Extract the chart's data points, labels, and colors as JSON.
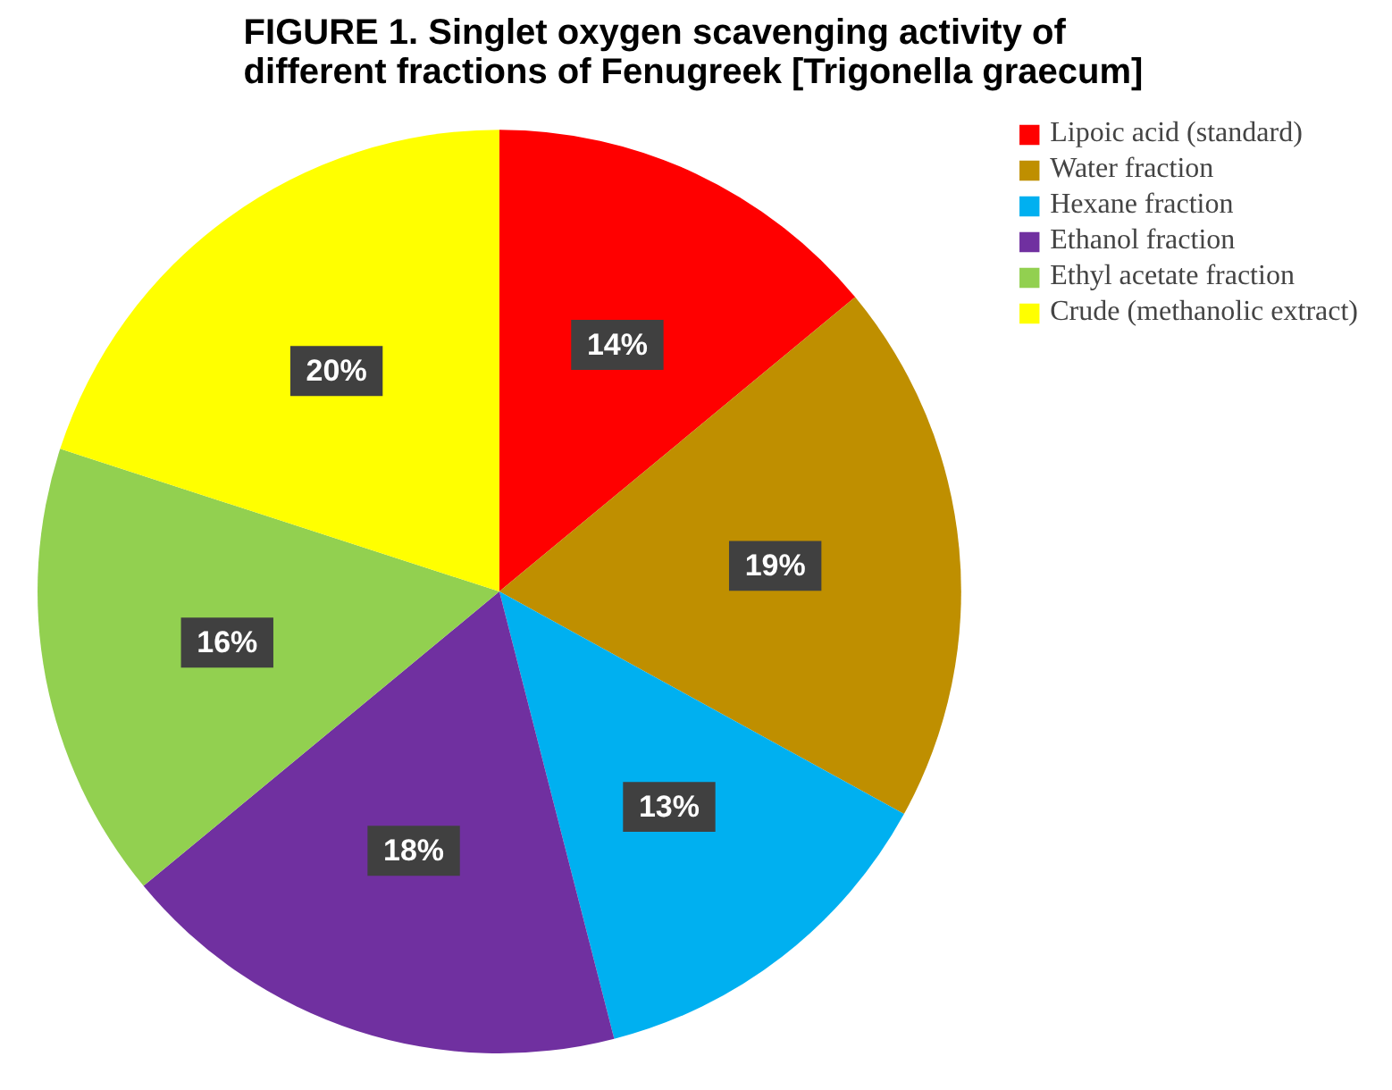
{
  "chart_data": {
    "type": "pie",
    "title": "FIGURE 1. Singlet oxygen scavenging activity of different fractions of Fenugreek [Trigonella graecum]",
    "categories": [
      "Lipoic acid (standard)",
      "Water fraction",
      "Hexane fraction",
      "Ethanol fraction",
      "Ethyl acetate fraction",
      "Crude (methanolic extract)"
    ],
    "values": [
      14,
      19,
      13,
      18,
      16,
      20
    ],
    "colors": [
      "#ff0000",
      "#bf8f00",
      "#00b0f0",
      "#7030a0",
      "#92d050",
      "#ffff00"
    ],
    "value_labels": [
      "14%",
      "19%",
      "13%",
      "18%",
      "16%",
      "20%"
    ],
    "legend": "top right"
  }
}
